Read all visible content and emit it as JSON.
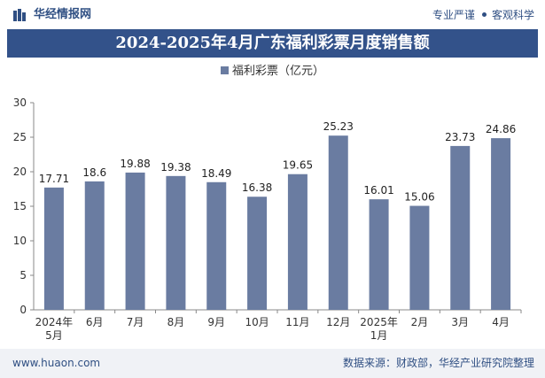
{
  "header": {
    "brand": "华经情报网",
    "tagline_left": "专业严谨",
    "tagline_right": "客观科学"
  },
  "chart_data": {
    "type": "bar",
    "title": "2024-2025年4月广东福利彩票月度销售额",
    "categories": [
      "2024年\n5月",
      "6月",
      "7月",
      "8月",
      "9月",
      "10月",
      "11月",
      "12月",
      "2025年\n1月",
      "2月",
      "3月",
      "4月"
    ],
    "series": [
      {
        "name": "福利彩票（亿元）",
        "values": [
          17.71,
          18.6,
          19.88,
          19.38,
          18.49,
          16.38,
          19.65,
          25.23,
          16.01,
          15.06,
          23.73,
          24.86
        ]
      }
    ],
    "value_labels": [
      "17.71",
      "18.6",
      "19.88",
      "19.38",
      "18.49",
      "16.38",
      "19.65",
      "25.23",
      "16.01",
      "15.06",
      "23.73",
      "24.86"
    ],
    "ylim": [
      0,
      30
    ],
    "yticks": [
      0,
      5,
      10,
      15,
      20,
      25,
      30
    ],
    "grid": false,
    "legend_position": "top-center",
    "bar_color": "#6a7ca1"
  },
  "footer": {
    "site": "www.huaon.com",
    "source": "数据来源：财政部，华经产业研究院整理"
  },
  "colors": {
    "title_bg": "#33528a",
    "brand": "#2f4f83",
    "footer_bg": "#f0f2f6"
  }
}
